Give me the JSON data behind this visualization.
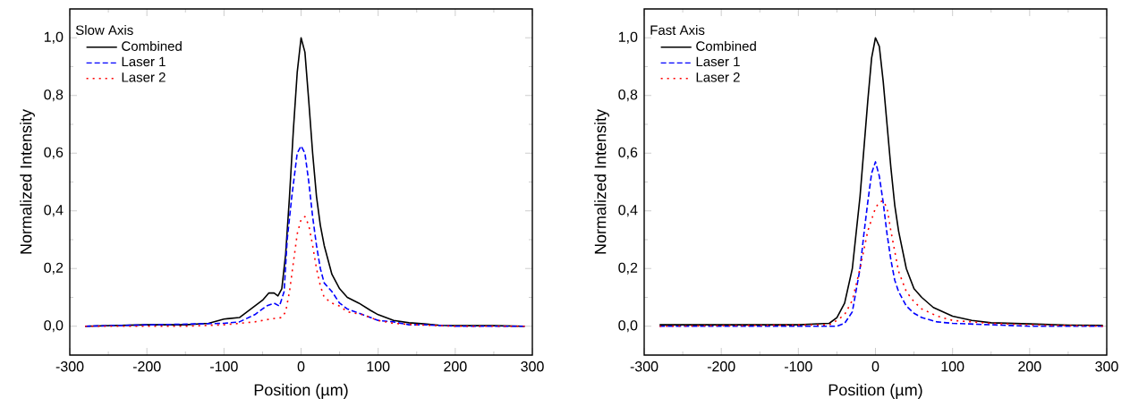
{
  "chart_data": [
    {
      "type": "line",
      "xlabel": "Position (µm)",
      "ylabel": "Normalized Intensity",
      "legend_title": "Slow Axis",
      "legend": "top left",
      "xlim": [
        -300,
        300
      ],
      "xticks": [
        -300,
        -200,
        -100,
        0,
        100,
        200,
        300
      ],
      "ylim": [
        -0.1,
        1.1
      ],
      "yticks": [
        {
          "value": 0,
          "label": "0,0"
        },
        {
          "value": 0.2,
          "label": "0,2"
        },
        {
          "value": 0.4,
          "label": "0,4"
        },
        {
          "value": 0.6,
          "label": "0,6"
        },
        {
          "value": 0.8,
          "label": "0,8"
        },
        {
          "value": 1.0,
          "label": "1,0"
        }
      ],
      "series": [
        {
          "name": "Combined",
          "color": "#000000",
          "line_style": "solid",
          "x": [
            -280,
            -200,
            -150,
            -120,
            -100,
            -80,
            -70,
            -60,
            -50,
            -42,
            -35,
            -30,
            -25,
            -20,
            -15,
            -10,
            -5,
            0,
            5,
            10,
            15,
            20,
            25,
            30,
            40,
            50,
            60,
            75,
            90,
            100,
            120,
            140,
            160,
            180,
            200,
            250,
            290
          ],
          "values": [
            0,
            0.005,
            0.005,
            0.01,
            0.025,
            0.03,
            0.05,
            0.07,
            0.09,
            0.115,
            0.115,
            0.105,
            0.13,
            0.25,
            0.45,
            0.68,
            0.88,
            1.0,
            0.95,
            0.78,
            0.6,
            0.45,
            0.35,
            0.28,
            0.18,
            0.13,
            0.1,
            0.08,
            0.055,
            0.04,
            0.02,
            0.012,
            0.008,
            0.003,
            0.002,
            0.002,
            0
          ]
        },
        {
          "name": "Laser 1",
          "color": "#0000ff",
          "line_style": "dashed",
          "x": [
            -280,
            -100,
            -80,
            -60,
            -45,
            -35,
            -28,
            -22,
            -18,
            -12,
            -5,
            0,
            5,
            10,
            15,
            20,
            25,
            30,
            40,
            50,
            60,
            80,
            100,
            120,
            140,
            160,
            200,
            290
          ],
          "values": [
            0,
            0.01,
            0.015,
            0.04,
            0.07,
            0.08,
            0.07,
            0.12,
            0.3,
            0.45,
            0.6,
            0.625,
            0.6,
            0.5,
            0.38,
            0.28,
            0.2,
            0.15,
            0.12,
            0.08,
            0.06,
            0.04,
            0.02,
            0.015,
            0.005,
            0.005,
            0,
            0
          ]
        },
        {
          "name": "Laser 2",
          "color": "#ff0000",
          "line_style": "dotted",
          "x": [
            -280,
            -150,
            -100,
            -80,
            -60,
            -40,
            -25,
            -20,
            -15,
            -10,
            -5,
            0,
            5,
            10,
            15,
            20,
            25,
            30,
            40,
            50,
            60,
            80,
            100,
            120,
            150,
            200,
            290
          ],
          "values": [
            0,
            0,
            0.005,
            0.01,
            0.015,
            0.025,
            0.03,
            0.05,
            0.12,
            0.22,
            0.32,
            0.37,
            0.38,
            0.35,
            0.28,
            0.2,
            0.14,
            0.1,
            0.08,
            0.07,
            0.05,
            0.04,
            0.02,
            0.01,
            0.005,
            0,
            0
          ]
        }
      ]
    },
    {
      "type": "line",
      "xlabel": "Position (µm)",
      "ylabel": "Normalized Intensity",
      "legend_title": "Fast Axis",
      "legend": "top left",
      "xlim": [
        -300,
        300
      ],
      "xticks": [
        -300,
        -200,
        -100,
        0,
        100,
        200,
        300
      ],
      "ylim": [
        -0.1,
        1.1
      ],
      "yticks": [
        {
          "value": 0,
          "label": "0,0"
        },
        {
          "value": 0.2,
          "label": "0,2"
        },
        {
          "value": 0.4,
          "label": "0,4"
        },
        {
          "value": 0.6,
          "label": "0,6"
        },
        {
          "value": 0.8,
          "label": "0,8"
        },
        {
          "value": 1.0,
          "label": "1,0"
        }
      ],
      "series": [
        {
          "name": "Combined",
          "color": "#000000",
          "line_style": "solid",
          "x": [
            -280,
            -100,
            -60,
            -50,
            -40,
            -30,
            -20,
            -10,
            -5,
            0,
            5,
            10,
            15,
            20,
            25,
            30,
            40,
            50,
            60,
            75,
            100,
            125,
            150,
            200,
            250,
            295
          ],
          "values": [
            0.005,
            0.005,
            0.01,
            0.03,
            0.08,
            0.2,
            0.45,
            0.78,
            0.93,
            1.0,
            0.97,
            0.85,
            0.7,
            0.55,
            0.42,
            0.33,
            0.2,
            0.13,
            0.1,
            0.065,
            0.035,
            0.02,
            0.012,
            0.008,
            0.004,
            0.003
          ]
        },
        {
          "name": "Laser 1",
          "color": "#0000ff",
          "line_style": "dashed",
          "x": [
            -280,
            -50,
            -40,
            -30,
            -20,
            -15,
            -10,
            -5,
            0,
            5,
            10,
            15,
            20,
            25,
            30,
            40,
            50,
            60,
            80,
            100,
            150,
            200,
            295
          ],
          "values": [
            0,
            0,
            0.01,
            0.05,
            0.2,
            0.32,
            0.43,
            0.53,
            0.57,
            0.52,
            0.43,
            0.32,
            0.23,
            0.16,
            0.12,
            0.07,
            0.045,
            0.03,
            0.015,
            0.01,
            0.005,
            0,
            0
          ]
        },
        {
          "name": "Laser 2",
          "color": "#ff0000",
          "line_style": "dotted",
          "x": [
            -280,
            -60,
            -50,
            -40,
            -30,
            -20,
            -10,
            0,
            5,
            10,
            15,
            20,
            25,
            30,
            40,
            50,
            60,
            80,
            100,
            150,
            200,
            295
          ],
          "values": [
            0,
            0.005,
            0.02,
            0.04,
            0.09,
            0.2,
            0.33,
            0.41,
            0.43,
            0.435,
            0.41,
            0.33,
            0.26,
            0.19,
            0.12,
            0.085,
            0.06,
            0.035,
            0.02,
            0.01,
            0.005,
            0
          ]
        }
      ]
    }
  ]
}
